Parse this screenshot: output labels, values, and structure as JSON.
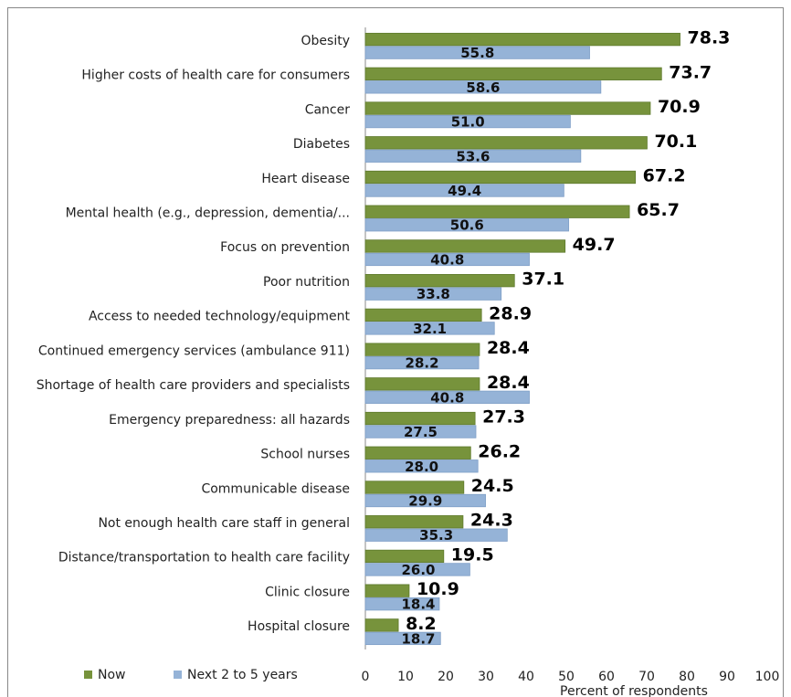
{
  "chart_data": {
    "type": "bar",
    "orientation": "horizontal",
    "categories": [
      "Obesity",
      "Higher costs of health care for consumers",
      "Cancer",
      "Diabetes",
      "Heart disease",
      "Mental health (e.g., depression, dementia/...",
      "Focus on prevention",
      "Poor nutrition",
      "Access to needed technology/equipment",
      "Continued emergency services (ambulance 911)",
      "Shortage of health care providers and specialists",
      "Emergency preparedness: all hazards",
      "School nurses",
      "Communicable disease",
      "Not enough health care staff in general",
      "Distance/transportation to health care facility",
      "Clinic closure",
      "Hospital closure"
    ],
    "series": [
      {
        "name": "Now",
        "color": "#77933c",
        "values": [
          78.3,
          73.7,
          70.9,
          70.1,
          67.2,
          65.7,
          49.7,
          37.1,
          28.9,
          28.4,
          28.4,
          27.3,
          26.2,
          24.5,
          24.3,
          19.5,
          10.9,
          8.2
        ],
        "value_labels": [
          "78.3",
          "73.7",
          "70.9",
          "70.1",
          "67.2",
          "65.7",
          "49.7",
          "37.1",
          "28.9",
          "28.4",
          "28.4",
          "27.3",
          "26.2",
          "24.5",
          "24.3",
          "19.5",
          "10.9",
          "8.2"
        ]
      },
      {
        "name": "Next 2 to 5 years",
        "color": "#95b3d7",
        "values": [
          55.8,
          58.6,
          51.0,
          53.6,
          49.4,
          50.6,
          40.8,
          33.8,
          32.1,
          28.2,
          40.8,
          27.5,
          28.0,
          29.9,
          35.3,
          26.0,
          18.4,
          18.7
        ],
        "value_labels": [
          "55.8",
          "58.6",
          "51.0",
          "53.6",
          "49.4",
          "50.6",
          "40.8",
          "33.8",
          "32.1",
          "28.2",
          "40.8",
          "27.5",
          "28.0",
          "29.9",
          "35.3",
          "26.0",
          "18.4",
          "18.7"
        ]
      }
    ],
    "xlabel": "Percent of respondents",
    "xlim": [
      0,
      100
    ],
    "xticks": [
      0,
      10,
      20,
      30,
      40,
      50,
      60,
      70,
      80,
      90,
      100
    ],
    "legend": "bottom-left",
    "grid": false
  }
}
